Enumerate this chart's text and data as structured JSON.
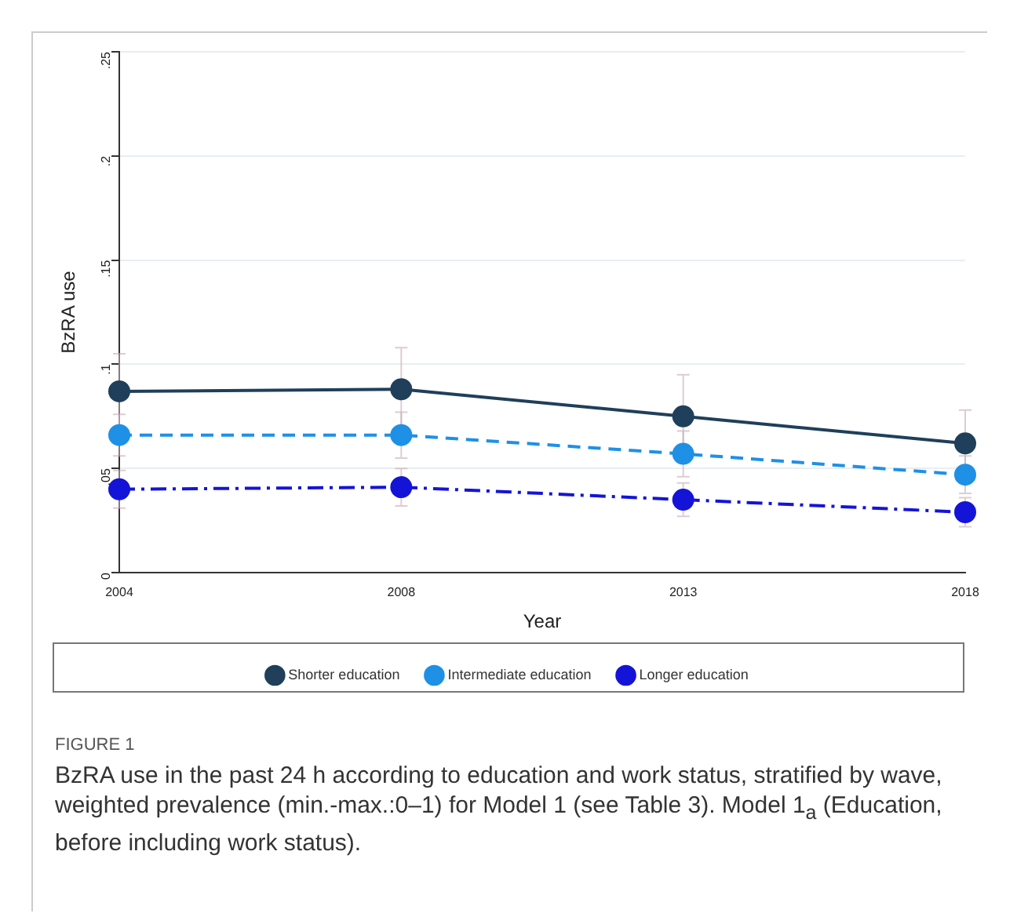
{
  "chart_data": {
    "type": "line",
    "categories": [
      "2004",
      "2008",
      "2013",
      "2018"
    ],
    "xlabel": "Year",
    "ylabel": "BzRA use",
    "ylim": [
      0,
      0.25
    ],
    "yticks": [
      {
        "value": 0,
        "label": "0"
      },
      {
        "value": 0.05,
        "label": ".05"
      },
      {
        "value": 0.1,
        "label": ".1"
      },
      {
        "value": 0.15,
        "label": ".15"
      },
      {
        "value": 0.2,
        "label": ".2"
      },
      {
        "value": 0.25,
        "label": ".25"
      }
    ],
    "grid": "y",
    "legend": "bottom",
    "marker": "circle",
    "series": [
      {
        "name": "Shorter education",
        "color": "#1f3f5a",
        "values": [
          0.087,
          0.088,
          0.075,
          0.062
        ],
        "errors": [
          0.018,
          0.02,
          0.02,
          0.016
        ],
        "line_style": "solid"
      },
      {
        "name": "Intermediate education",
        "color": "#1e90e6",
        "values": [
          0.066,
          0.066,
          0.057,
          0.047
        ],
        "errors": [
          0.01,
          0.011,
          0.011,
          0.009
        ],
        "line_style": "dashed"
      },
      {
        "name": "Longer education",
        "color": "#1414d8",
        "values": [
          0.04,
          0.041,
          0.035,
          0.029
        ],
        "errors": [
          0.009,
          0.009,
          0.008,
          0.007
        ],
        "line_style": "dashdot"
      }
    ],
    "annotations": [
      "FIGURE 1",
      "BzRA use in the past 24 h according to education and work status, stratified by wave, weighted prevalence (min.-max.:0–1) for Model 1 (see Table 3). Model 1$_{a}$ (Education, before including work status)."
    ]
  }
}
